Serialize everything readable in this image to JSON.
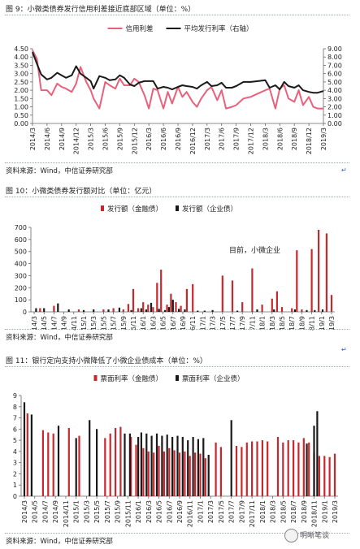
{
  "colors": {
    "red": "#c6282e",
    "black": "#1a1a1a",
    "pink": "#e8617c",
    "grid": "#d9d9d9",
    "axis": "#666666"
  },
  "figures": [
    {
      "caption": "图 9：小微类债券发行信用利差接近底部区域（单位：%）",
      "source": "资料来源：Wind，中信证券研究部"
    },
    {
      "caption": "图 10：小微类债券发行额对比（单位：亿元）",
      "source": "资料来源：Wind，中信证券研究部"
    },
    {
      "caption": "图 11：银行定向支持小微降低了小微企业债成本（单位：%）",
      "source": "资料来源：Wind，中信证券研究部"
    }
  ],
  "watermark": {
    "icon": "wechat-logo-icon",
    "text": "明晰笔谈"
  },
  "chart_data": [
    {
      "type": "line",
      "legend": [
        "信用利差",
        "平均发行利率（右轴）"
      ],
      "legend_placement": "top-center",
      "x_ticks": [
        "2014/3",
        "2014/6",
        "2014/9",
        "2014/12",
        "2015/3",
        "2015/6",
        "2015/9",
        "2015/12",
        "2016/3",
        "2016/6",
        "2016/9",
        "2016/12",
        "2017/3",
        "2017/6",
        "2017/9",
        "2017/12",
        "2018/3",
        "2018/6",
        "2018/9",
        "2018/12",
        "2019/3"
      ],
      "y_ticks_left": [
        "0.00",
        "0.50",
        "1.00",
        "1.50",
        "2.00",
        "2.50",
        "3.00",
        "3.50",
        "4.00",
        "4.50"
      ],
      "y_ticks_right": [
        "0.00",
        "1.00",
        "2.00",
        "3.00",
        "4.00",
        "5.00",
        "6.00",
        "7.00",
        "8.00",
        "9.00"
      ],
      "ylim_left": [
        0,
        4.5
      ],
      "ylim_right": [
        0,
        9
      ],
      "x_range": [
        0,
        20
      ],
      "grid": false,
      "series": [
        {
          "name": "信用利差",
          "axis": "left",
          "x": [
            0,
            0.3,
            0.6,
            1,
            1.3,
            1.7,
            2,
            2.3,
            2.7,
            3,
            3.3,
            3.7,
            4,
            4.2,
            4.6,
            5,
            5.3,
            5.7,
            6,
            6.3,
            6.7,
            7,
            7.3,
            7.7,
            8,
            8.3,
            8.6,
            9,
            9.3,
            9.6,
            10,
            10.3,
            10.6,
            11,
            11.3,
            11.6,
            12,
            12.3,
            12.7,
            13,
            13.3,
            13.7,
            14,
            14.5,
            15,
            15.5,
            16,
            16.3,
            16.7,
            17,
            17.3,
            17.6,
            18,
            18.3,
            18.6,
            19,
            19.3,
            19.6,
            20
          ],
          "y": [
            4.4,
            3.9,
            2.0,
            2.0,
            1.7,
            2.4,
            2.2,
            2.1,
            1.9,
            2.4,
            3.4,
            2.5,
            2.0,
            1.5,
            0.9,
            2.5,
            2.3,
            2.1,
            2.7,
            2.3,
            2.3,
            2.7,
            2.5,
            1.7,
            0.9,
            2.1,
            2.0,
            0.9,
            1.9,
            1.2,
            2.2,
            1.6,
            1.9,
            1.3,
            1.0,
            1.5,
            2.0,
            2.2,
            1.4,
            2.0,
            0.9,
            1.0,
            1.1,
            1.5,
            1.6,
            1.8,
            2.0,
            2.1,
            0.9,
            2.1,
            2.3,
            1.5,
            1.3,
            2.0,
            1.1,
            1.6,
            1.0,
            0.9,
            0.9
          ]
        },
        {
          "name": "平均发行利率（右轴）",
          "axis": "right",
          "x": [
            0,
            0.3,
            0.6,
            1,
            1.3,
            1.7,
            2,
            2.3,
            2.7,
            3,
            3.3,
            3.7,
            4,
            4.2,
            4.6,
            5,
            5.3,
            5.7,
            6,
            6.3,
            6.7,
            7,
            7.3,
            7.7,
            8,
            8.3,
            8.6,
            9,
            9.3,
            9.6,
            10,
            10.3,
            10.6,
            11,
            11.3,
            11.6,
            12,
            12.3,
            12.7,
            13,
            13.3,
            13.7,
            14,
            14.5,
            15,
            15.5,
            16,
            16.3,
            16.7,
            17,
            17.3,
            17.6,
            18,
            18.3,
            18.6,
            19,
            19.3,
            19.6,
            20
          ],
          "y": [
            8.6,
            7.2,
            5.9,
            5.3,
            5.5,
            6.1,
            5.8,
            5.5,
            5.8,
            6.9,
            6.0,
            5.5,
            5.1,
            4.2,
            5.7,
            5.5,
            5.2,
            5.3,
            5.8,
            5.5,
            4.7,
            4.5,
            4.9,
            5.1,
            5.1,
            5.1,
            4.2,
            4.4,
            4.3,
            4.1,
            4.4,
            4.6,
            4.5,
            4.4,
            4.2,
            4.6,
            5.0,
            4.5,
            4.6,
            4.9,
            4.3,
            4.3,
            4.5,
            5.0,
            5.0,
            5.1,
            5.2,
            4.3,
            4.6,
            4.1,
            5.0,
            4.5,
            4.3,
            4.6,
            4.0,
            3.8,
            3.7,
            3.7,
            3.9
          ]
        }
      ]
    },
    {
      "type": "bar",
      "legend": [
        "发行额（金融债）",
        "发行额（企业债）"
      ],
      "legend_placement": "top-center",
      "annotation": "目前，小微企业",
      "x_ticks": [
        "2014/3",
        "2014/5",
        "2014/7",
        "2014/9",
        "2014/11",
        "2015/1",
        "2015/3",
        "2015/5",
        "2015/7",
        "2015/9",
        "2015/11",
        "2016/1",
        "2016/3",
        "2016/5",
        "2016/7",
        "2016/9",
        "2016/11",
        "2017/1",
        "2017/3",
        "2017/5",
        "2017/7",
        "2017/9",
        "2017/11",
        "2018/1",
        "2018/3",
        "2018/5",
        "2018/7",
        "2018/9",
        "2018/11",
        "2019/1",
        "2019/3"
      ],
      "y_ticks": [
        "0",
        "100",
        "200",
        "300",
        "400",
        "500",
        "600",
        "700"
      ],
      "ylim": [
        0,
        700
      ],
      "x_range": [
        0,
        30
      ],
      "grid": false,
      "series": [
        {
          "name": "发行额（金融债）",
          "x": [
            0.6,
            2,
            4.5,
            7,
            8,
            9,
            9.5,
            10,
            10.5,
            11,
            11.5,
            12,
            12.4,
            12.8,
            13.4,
            13.8,
            14.3,
            14.8,
            15.4,
            16,
            19,
            20,
            21,
            22,
            23,
            24,
            24.5,
            25,
            26,
            26.5,
            27,
            28,
            28.7,
            29.5,
            30
          ],
          "values": [
            30,
            50,
            20,
            20,
            30,
            20,
            65,
            190,
            30,
            80,
            60,
            40,
            240,
            350,
            60,
            150,
            80,
            50,
            190,
            230,
            300,
            260,
            80,
            360,
            60,
            110,
            170,
            40,
            30,
            510,
            20,
            520,
            680,
            650,
            140
          ]
        },
        {
          "name": "发行额（企业债）",
          "x": [
            0.2,
            1,
            2.4,
            3.5,
            5,
            6,
            7.5,
            8.6,
            9.8,
            10.8,
            11.3,
            11.8,
            12.6,
            13.2,
            13.6,
            14,
            14.6,
            15.2,
            16.5,
            17.2,
            18,
            20.5,
            22.5,
            24.2,
            26.3,
            27.5,
            28.3,
            29.1
          ],
          "values": [
            30,
            30,
            70,
            20,
            15,
            20,
            20,
            35,
            15,
            30,
            20,
            75,
            25,
            15,
            40,
            100,
            25,
            20,
            10,
            10,
            15,
            10,
            20,
            20,
            20,
            15,
            15,
            20
          ]
        }
      ]
    },
    {
      "type": "bar",
      "legend": [
        "票面利率（金融债）",
        "票面利率（企业债）"
      ],
      "legend_placement": "top-center",
      "x_ticks": [
        "2014/3",
        "2014/5",
        "2014/7",
        "2014/9",
        "2014/11",
        "2015/1",
        "2015/3",
        "2015/5",
        "2015/7",
        "2015/9",
        "2015/11",
        "2016/1",
        "2016/3",
        "2016/5",
        "2016/7",
        "2016/9",
        "2016/11",
        "2017/1",
        "2017/3",
        "2017/5",
        "2017/7",
        "2017/9",
        "2017/11",
        "2018/1",
        "2018/3",
        "2018/5",
        "2018/7",
        "2018/9",
        "2018/11",
        "2019/1",
        "2019/3"
      ],
      "y_ticks": [
        "0",
        "1",
        "2",
        "3",
        "4",
        "5",
        "6",
        "7",
        "8",
        "9"
      ],
      "ylim": [
        0,
        9
      ],
      "x_range": [
        0,
        30
      ],
      "grid": false,
      "series": [
        {
          "name": "票面利率（金融债）",
          "x": [
            0.3,
            1.8,
            2.3,
            2.8,
            4.3,
            5.3,
            7.8,
            8.3,
            8.8,
            9.3,
            10.3,
            10.8,
            11.5,
            12,
            12.5,
            13,
            13.5,
            14,
            14.5,
            15,
            15.5,
            16,
            16.5,
            17,
            17.5,
            18.5,
            19,
            20.5,
            21,
            21.5,
            22,
            22.5,
            23,
            23.5,
            24.5,
            25,
            25.5,
            26,
            26.5,
            27,
            27.5,
            28,
            28.5,
            29,
            29.5,
            30
          ],
          "values": [
            7.4,
            5.9,
            5.7,
            5.6,
            6.1,
            5.4,
            5.2,
            5.6,
            6.1,
            6.2,
            5.3,
            4.6,
            4.3,
            4.0,
            3.9,
            4.5,
            4.0,
            4.3,
            4.1,
            3.9,
            4.0,
            3.6,
            3.9,
            3.8,
            3.4,
            4.8,
            4.4,
            4.5,
            4.4,
            4.8,
            4.9,
            4.9,
            5.0,
            4.9,
            5.3,
            4.8,
            5.0,
            5.0,
            4.8,
            5.2,
            4.8,
            3.9,
            3.6,
            3.6,
            3.5,
            3.8
          ]
        },
        {
          "name": "票面利率（企业债）",
          "x": [
            0.0,
            0.7,
            3.3,
            5.0,
            6.3,
            7.0,
            9.7,
            10.2,
            11.0,
            11.3,
            11.8,
            12.3,
            12.8,
            13.3,
            13.8,
            14.3,
            14.8,
            15.3,
            15.8,
            16.3,
            16.8,
            17.3,
            17.8,
            20.0,
            27.3,
            28.0,
            28.3
          ],
          "values": [
            8.4,
            7.3,
            6.3,
            5.2,
            6.8,
            6.0,
            5.6,
            5.6,
            5.3,
            5.7,
            5.6,
            5.4,
            5.6,
            5.4,
            5.5,
            5.3,
            5.4,
            5.3,
            5.0,
            5.3,
            5.1,
            5.2,
            3.7,
            6.8,
            4.7,
            6.3,
            7.6
          ]
        }
      ]
    }
  ]
}
